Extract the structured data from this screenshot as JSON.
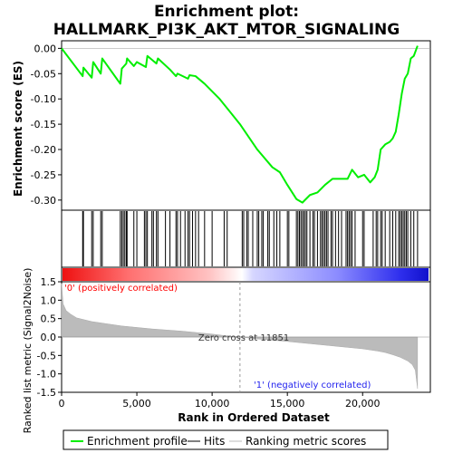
{
  "chart_data": {
    "type": "line",
    "title_line1": "Enrichment plot:",
    "title_line2": "HALLMARK_PI3K_AKT_MTOR_SIGNALING",
    "ylabel_top": "Enrichment score (ES)",
    "ylabel_bottom": "Ranked list metric (Signal2Noise)",
    "xlabel": "Rank in Ordered Dataset",
    "xlim": [
      0,
      24500
    ],
    "xticks": [
      0,
      5000,
      10000,
      15000,
      20000
    ],
    "xtick_labels": [
      "0",
      "5,000",
      "10,000",
      "15,000",
      "20,000"
    ],
    "es_ylim": [
      -0.32,
      0.015
    ],
    "es_yticks": [
      0.0,
      -0.05,
      -0.1,
      -0.15,
      -0.2,
      -0.25,
      -0.3
    ],
    "es_ytick_labels": [
      "0.00",
      "-0.05",
      "-0.10",
      "-0.15",
      "-0.20",
      "-0.25",
      "-0.30"
    ],
    "metric_ylim": [
      -1.5,
      1.5
    ],
    "metric_yticks": [
      1.5,
      1.0,
      0.5,
      0.0,
      -0.5,
      -1.0,
      -1.5
    ],
    "metric_ytick_labels": [
      "1.5",
      "1.0",
      "0.5",
      "0.0",
      "-0.5",
      "-1.0",
      "-1.5"
    ],
    "zero_cross_rank": 11851,
    "zero_cross_label": "Zero cross at 11851",
    "pos_label": "'0' (positively correlated)",
    "neg_label": "'1' (negatively correlated)",
    "grid": false,
    "legend_placement": "bottom",
    "legend": [
      {
        "name": "Enrichment profile",
        "color": "#00ee00"
      },
      {
        "name": "Hits",
        "color": "#000000"
      },
      {
        "name": "Ranking metric scores",
        "color": "#bbbbbb"
      }
    ],
    "enrichment_profile": {
      "rank": [
        0,
        1400,
        1450,
        2000,
        2100,
        2600,
        2700,
        3900,
        4000,
        4300,
        4350,
        4800,
        5000,
        5600,
        5700,
        6300,
        6400,
        7200,
        7600,
        7700,
        8400,
        8500,
        8900,
        9500,
        10500,
        11851,
        13000,
        14000,
        14500,
        15000,
        15600,
        16000,
        16500,
        17000,
        17500,
        18000,
        18500,
        19000,
        19300,
        19700,
        20100,
        20500,
        20800,
        21000,
        21200,
        21500,
        21800,
        22000,
        22200,
        22400,
        22600,
        22800,
        23000,
        23200,
        23400,
        23650
      ],
      "es": [
        0.0,
        -0.055,
        -0.038,
        -0.058,
        -0.027,
        -0.05,
        -0.02,
        -0.07,
        -0.04,
        -0.03,
        -0.02,
        -0.035,
        -0.027,
        -0.037,
        -0.015,
        -0.03,
        -0.02,
        -0.042,
        -0.055,
        -0.05,
        -0.06,
        -0.053,
        -0.055,
        -0.07,
        -0.1,
        -0.15,
        -0.2,
        -0.235,
        -0.245,
        -0.27,
        -0.298,
        -0.305,
        -0.29,
        -0.285,
        -0.27,
        -0.258,
        -0.258,
        -0.258,
        -0.24,
        -0.255,
        -0.25,
        -0.265,
        -0.255,
        -0.24,
        -0.2,
        -0.19,
        -0.185,
        -0.178,
        -0.165,
        -0.13,
        -0.09,
        -0.06,
        -0.05,
        -0.02,
        -0.015,
        0.005
      ]
    },
    "hits": [
      1400,
      1450,
      2000,
      2100,
      2600,
      2700,
      3900,
      4000,
      4100,
      4200,
      4300,
      4350,
      4800,
      5000,
      5500,
      5600,
      5700,
      6000,
      6100,
      6300,
      6400,
      6900,
      7200,
      7600,
      7700,
      7900,
      8200,
      8400,
      8500,
      8700,
      8900,
      9100,
      9500,
      10000,
      10800,
      11000,
      12000,
      12100,
      12300,
      12400,
      12700,
      13000,
      13100,
      13300,
      13400,
      13700,
      13800,
      14100,
      14300,
      14500,
      15000,
      15100,
      15600,
      15700,
      15800,
      15900,
      16000,
      16100,
      16200,
      16300,
      16500,
      16700,
      16800,
      17000,
      17200,
      17300,
      17400,
      17500,
      17600,
      17700,
      17900,
      18000,
      18200,
      18400,
      18600,
      18900,
      19000,
      19100,
      19200,
      19300,
      19500,
      20000,
      20100,
      20700,
      20900,
      21000,
      21200,
      21300,
      21500,
      21800,
      22000,
      22200,
      22400,
      22500,
      22600,
      22700,
      22800,
      22900,
      23000,
      23200,
      23400,
      23650
    ],
    "metric_profile": {
      "rank": [
        0,
        100,
        300,
        600,
        1000,
        2000,
        3000,
        4000,
        5000,
        6000,
        7000,
        8000,
        9000,
        10000,
        11000,
        11851,
        13000,
        15000,
        17000,
        19000,
        20000,
        21000,
        21500,
        22000,
        22500,
        23000,
        23300,
        23500,
        23650
      ],
      "value": [
        1.45,
        0.9,
        0.72,
        0.62,
        0.52,
        0.42,
        0.36,
        0.3,
        0.26,
        0.22,
        0.19,
        0.16,
        0.12,
        0.08,
        0.03,
        0.0,
        -0.05,
        -0.12,
        -0.2,
        -0.28,
        -0.32,
        -0.38,
        -0.42,
        -0.48,
        -0.55,
        -0.65,
        -0.75,
        -0.9,
        -1.4
      ]
    }
  }
}
